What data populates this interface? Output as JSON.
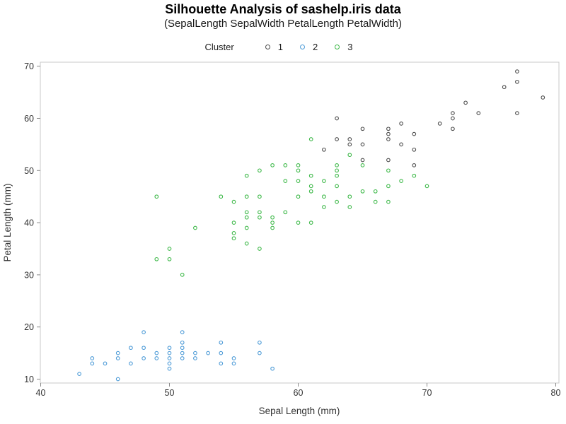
{
  "page": {
    "background": "#ffffff",
    "frame_color": "#c9c9c9",
    "tick_color": "#8a8a8a",
    "text_color": "#333333"
  },
  "chart_data": {
    "type": "scatter",
    "title": "Silhouette Analysis of sashelp.iris data",
    "subtitle": "(SepalLength SepalWidth PetalLength PetalWidth)",
    "xlabel": "Sepal Length (mm)",
    "ylabel": "Petal Length (mm)",
    "xlim": [
      40,
      80
    ],
    "ylim": [
      10,
      70
    ],
    "xticks": [
      40,
      50,
      60,
      70,
      80
    ],
    "yticks": [
      10,
      20,
      30,
      40,
      50,
      60,
      70
    ],
    "grid": false,
    "marker": "open-circle",
    "legend": {
      "title": "Cluster",
      "position": "top-center",
      "entries": [
        {
          "label": "1",
          "color": "#4d4d4d"
        },
        {
          "label": "2",
          "color": "#4d9bd7"
        },
        {
          "label": "3",
          "color": "#3fb94a"
        }
      ]
    },
    "series": [
      {
        "name": "1",
        "color": "#4d4d4d",
        "points": [
          [
            62,
            54
          ],
          [
            63,
            56
          ],
          [
            63,
            60
          ],
          [
            64,
            55
          ],
          [
            64,
            56
          ],
          [
            65,
            52
          ],
          [
            65,
            55
          ],
          [
            65,
            58
          ],
          [
            67,
            52
          ],
          [
            67,
            56
          ],
          [
            67,
            57
          ],
          [
            67,
            58
          ],
          [
            68,
            55
          ],
          [
            68,
            59
          ],
          [
            69,
            51
          ],
          [
            69,
            54
          ],
          [
            69,
            57
          ],
          [
            71,
            59
          ],
          [
            72,
            58
          ],
          [
            72,
            60
          ],
          [
            72,
            61
          ],
          [
            73,
            63
          ],
          [
            74,
            61
          ],
          [
            76,
            66
          ],
          [
            77,
            61
          ],
          [
            77,
            67
          ],
          [
            77,
            69
          ],
          [
            79,
            64
          ]
        ]
      },
      {
        "name": "2",
        "color": "#4d9bd7",
        "points": [
          [
            43,
            11
          ],
          [
            44,
            13
          ],
          [
            44,
            14
          ],
          [
            45,
            13
          ],
          [
            46,
            10
          ],
          [
            46,
            14
          ],
          [
            46,
            15
          ],
          [
            47,
            13
          ],
          [
            47,
            16
          ],
          [
            48,
            14
          ],
          [
            48,
            16
          ],
          [
            48,
            19
          ],
          [
            49,
            14
          ],
          [
            49,
            15
          ],
          [
            50,
            12
          ],
          [
            50,
            13
          ],
          [
            50,
            14
          ],
          [
            50,
            15
          ],
          [
            50,
            16
          ],
          [
            51,
            14
          ],
          [
            51,
            15
          ],
          [
            51,
            16
          ],
          [
            51,
            17
          ],
          [
            51,
            19
          ],
          [
            52,
            14
          ],
          [
            52,
            15
          ],
          [
            53,
            15
          ],
          [
            54,
            13
          ],
          [
            54,
            15
          ],
          [
            54,
            17
          ],
          [
            55,
            13
          ],
          [
            55,
            14
          ],
          [
            57,
            15
          ],
          [
            57,
            17
          ],
          [
            58,
            12
          ]
        ]
      },
      {
        "name": "3",
        "color": "#3fb94a",
        "points": [
          [
            49,
            33
          ],
          [
            49,
            45
          ],
          [
            50,
            33
          ],
          [
            50,
            35
          ],
          [
            51,
            30
          ],
          [
            52,
            39
          ],
          [
            54,
            45
          ],
          [
            55,
            37
          ],
          [
            55,
            38
          ],
          [
            55,
            40
          ],
          [
            55,
            44
          ],
          [
            56,
            36
          ],
          [
            56,
            39
          ],
          [
            56,
            41
          ],
          [
            56,
            42
          ],
          [
            56,
            45
          ],
          [
            56,
            49
          ],
          [
            57,
            35
          ],
          [
            57,
            41
          ],
          [
            57,
            42
          ],
          [
            57,
            45
          ],
          [
            57,
            50
          ],
          [
            58,
            39
          ],
          [
            58,
            40
          ],
          [
            58,
            41
          ],
          [
            58,
            51
          ],
          [
            59,
            42
          ],
          [
            59,
            48
          ],
          [
            59,
            51
          ],
          [
            60,
            40
          ],
          [
            60,
            45
          ],
          [
            60,
            48
          ],
          [
            60,
            50
          ],
          [
            60,
            51
          ],
          [
            61,
            40
          ],
          [
            61,
            46
          ],
          [
            61,
            47
          ],
          [
            61,
            49
          ],
          [
            61,
            56
          ],
          [
            62,
            43
          ],
          [
            62,
            45
          ],
          [
            62,
            48
          ],
          [
            63,
            44
          ],
          [
            63,
            47
          ],
          [
            63,
            49
          ],
          [
            63,
            50
          ],
          [
            63,
            51
          ],
          [
            64,
            43
          ],
          [
            64,
            45
          ],
          [
            64,
            53
          ],
          [
            65,
            46
          ],
          [
            65,
            51
          ],
          [
            66,
            44
          ],
          [
            66,
            46
          ],
          [
            67,
            44
          ],
          [
            67,
            47
          ],
          [
            67,
            50
          ],
          [
            68,
            48
          ],
          [
            69,
            49
          ],
          [
            70,
            47
          ]
        ]
      }
    ]
  }
}
